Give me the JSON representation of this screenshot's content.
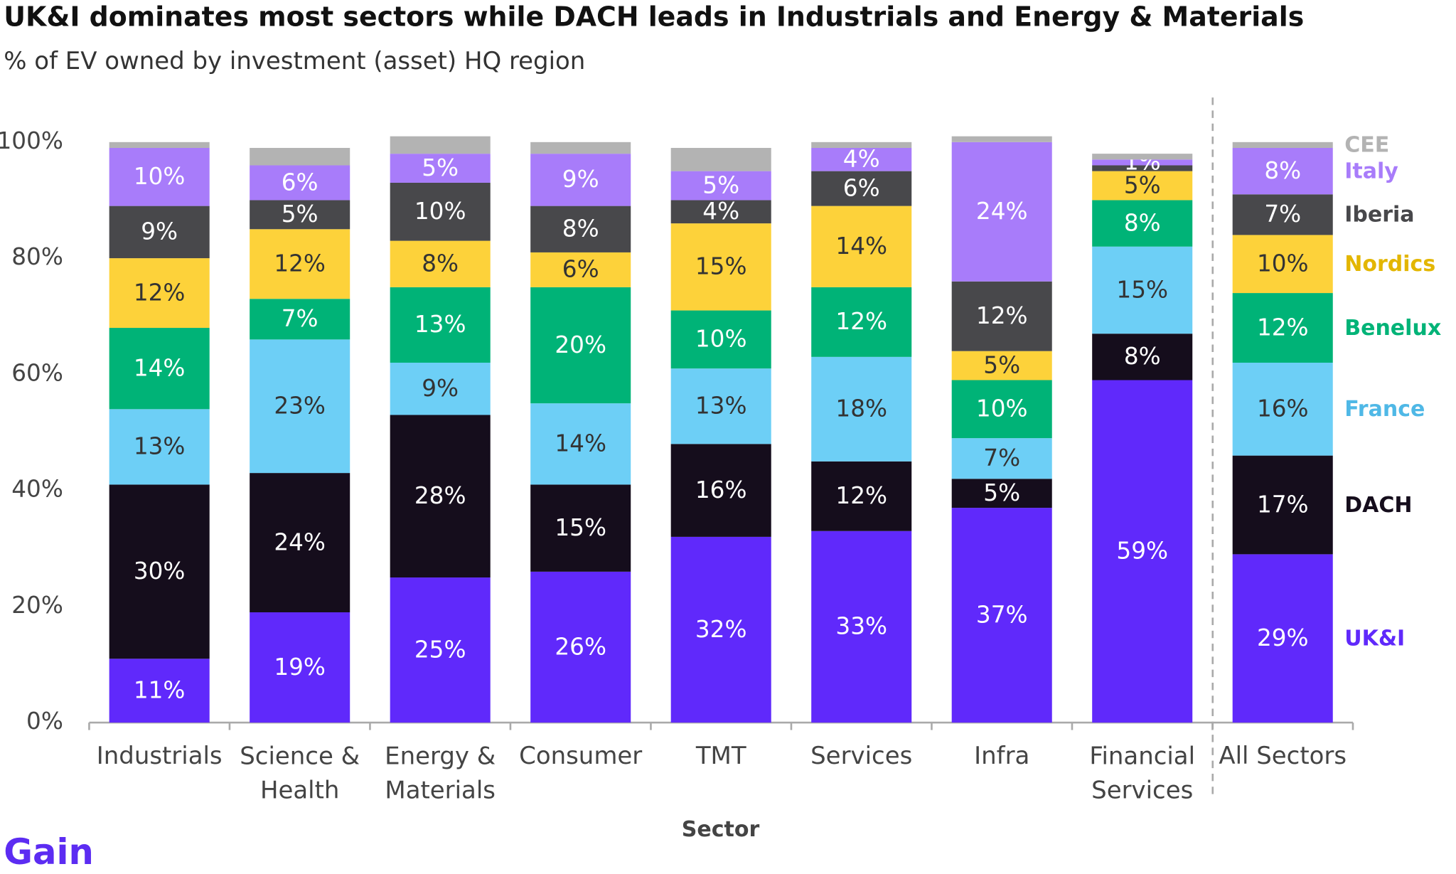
{
  "chart_data": {
    "type": "stacked-bar",
    "title": "UK&I dominates most sectors while DACH leads in Industrials and Energy & Materials",
    "subtitle": "% of EV owned by investment (asset) HQ region",
    "x_label": "Sector",
    "logo": "Gain",
    "categories": [
      "Industrials",
      "Science & Health",
      "Energy & Materials",
      "Consumer",
      "TMT",
      "Services",
      "Infra",
      "Financial Services",
      "All Sectors"
    ],
    "ylim": [
      0,
      100
    ],
    "yticks": [
      {
        "value": 0,
        "label": "0%"
      },
      {
        "value": 20,
        "label": "20%"
      },
      {
        "value": 40,
        "label": "40%"
      },
      {
        "value": 60,
        "label": "60%"
      },
      {
        "value": 80,
        "label": "80%"
      },
      {
        "value": 100,
        "label": "100%"
      }
    ],
    "grid": false,
    "series": [
      {
        "name": "UK&I",
        "color": "#6029fb",
        "values": [
          11,
          19,
          25,
          26,
          32,
          33,
          37,
          59,
          29
        ],
        "value_labels": [
          "11%",
          "19%",
          "25%",
          "26%",
          "32%",
          "33%",
          "37%",
          "59%",
          "29%"
        ]
      },
      {
        "name": "DACH",
        "color": "#150d1c",
        "values": [
          30,
          24,
          28,
          15,
          16,
          12,
          5,
          8,
          17
        ],
        "value_labels": [
          "30%",
          "24%",
          "28%",
          "15%",
          "16%",
          "12%",
          "5%",
          "8%",
          "17%"
        ]
      },
      {
        "name": "France",
        "color": "#6dcff6",
        "values": [
          13,
          23,
          9,
          14,
          13,
          18,
          7,
          15,
          16
        ],
        "value_labels": [
          "13%",
          "23%",
          "9%",
          "14%",
          "13%",
          "18%",
          "7%",
          "15%",
          "16%"
        ]
      },
      {
        "name": "Benelux",
        "color": "#00b377",
        "values": [
          14,
          7,
          13,
          20,
          10,
          12,
          10,
          8,
          12
        ],
        "value_labels": [
          "14%",
          "7%",
          "13%",
          "20%",
          "10%",
          "12%",
          "10%",
          "8%",
          "12%"
        ]
      },
      {
        "name": "Nordics",
        "color": "#fdd23a",
        "values": [
          12,
          12,
          8,
          6,
          15,
          14,
          5,
          5,
          10
        ],
        "value_labels": [
          "12%",
          "12%",
          "8%",
          "6%",
          "15%",
          "14%",
          "5%",
          "5%",
          "10%"
        ]
      },
      {
        "name": "Iberia",
        "color": "#48484b",
        "values": [
          9,
          5,
          10,
          8,
          4,
          6,
          12,
          1,
          7
        ],
        "value_labels": [
          "9%",
          "5%",
          "10%",
          "8%",
          "4%",
          "6%",
          "12%",
          null,
          "7%"
        ]
      },
      {
        "name": "Italy",
        "color": "#a87cfa",
        "values": [
          10,
          6,
          5,
          9,
          5,
          4,
          24,
          1,
          8
        ],
        "value_labels": [
          "10%",
          "6%",
          "5%",
          "9%",
          "5%",
          "4%",
          "24%",
          "1%",
          "8%"
        ]
      },
      {
        "name": "CEE",
        "color": "#b3b3b3",
        "values": [
          1,
          3,
          3,
          2,
          4,
          1,
          1,
          1,
          1
        ]
      }
    ]
  }
}
